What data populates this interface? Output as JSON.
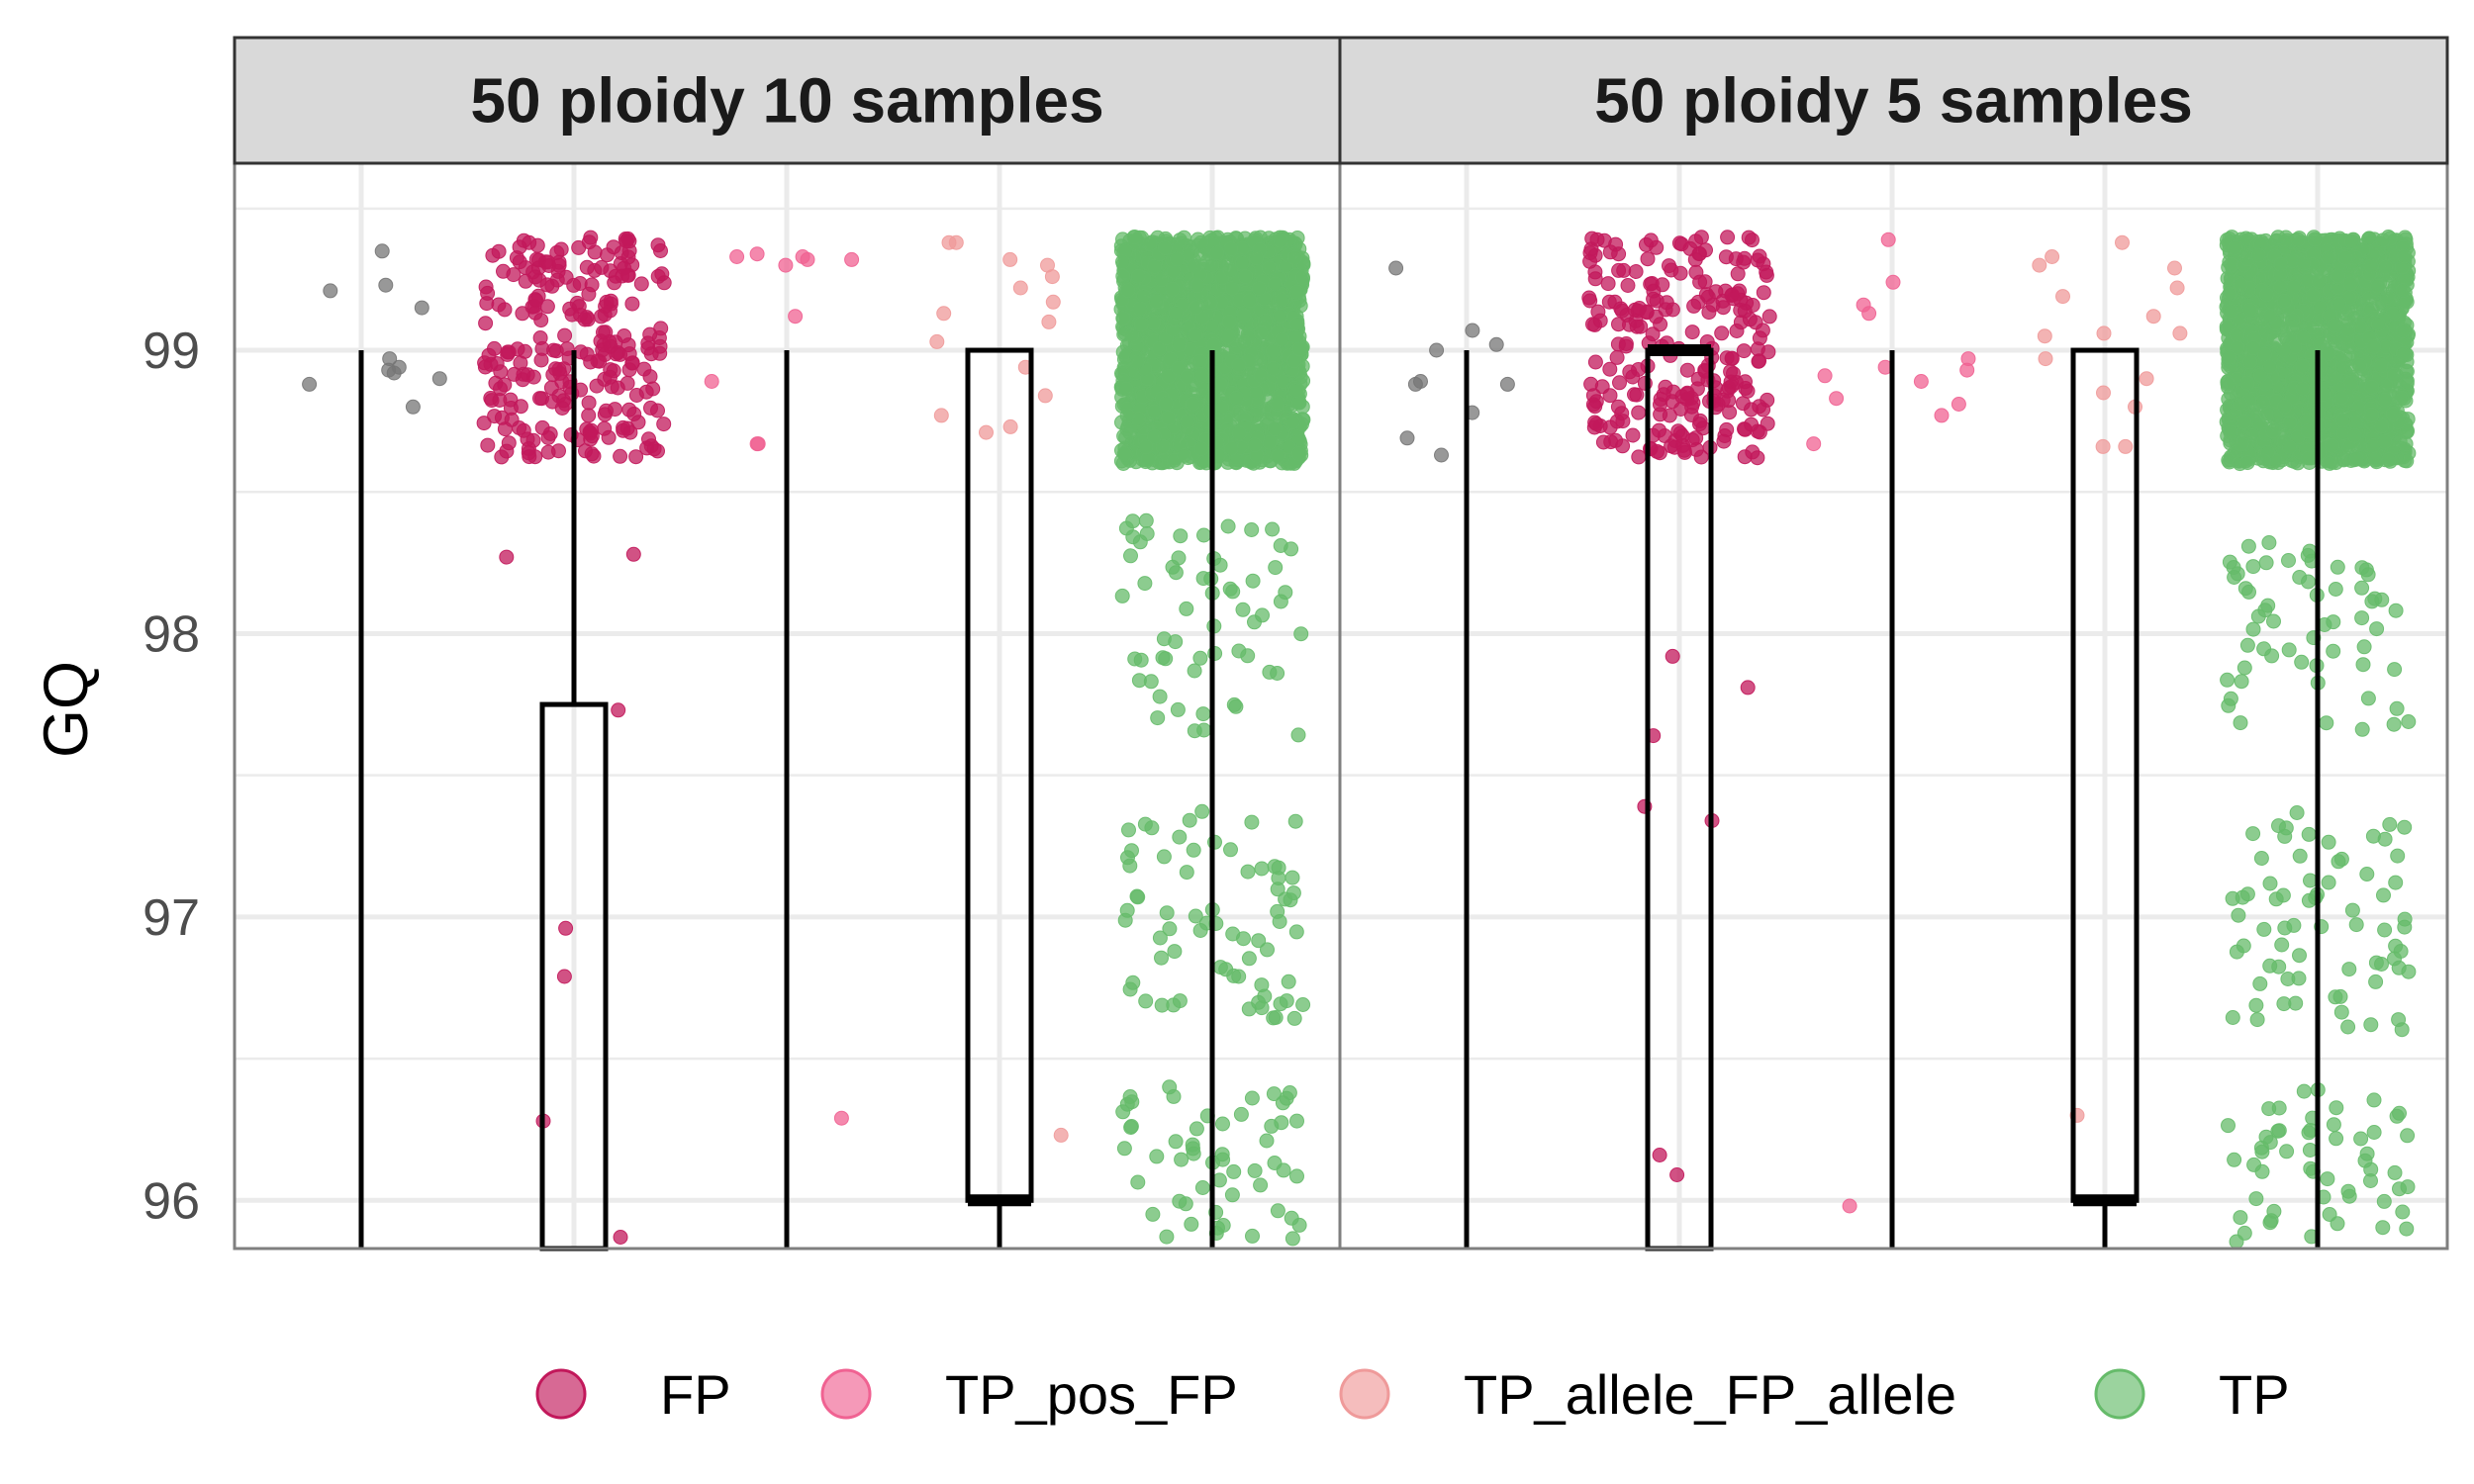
{
  "chart_data": {
    "type": "jitter-box",
    "ylabel": "GQ",
    "ylim": [
      95.83,
      99.66
    ],
    "y_ticks": [
      96,
      97,
      98,
      99
    ],
    "y_minor_ticks": [
      96.5,
      97.5,
      98.5,
      99.5
    ],
    "categories": [
      "FP",
      "TP_pos_FP",
      "TP_allele_FP_allele",
      "TP"
    ],
    "grid": true,
    "legend_position": "bottom",
    "legend": [
      {
        "label": "FP",
        "color": "#C2185B"
      },
      {
        "label": "TP_pos_FP",
        "color": "#F06292"
      },
      {
        "label": "TP_allele_FP_allele",
        "color": "#EF9A9A"
      },
      {
        "label": "TP",
        "color": "#66BB6A"
      }
    ],
    "unlegended_color": "#757575",
    "panels": [
      {
        "title": "50 ploidy 10 samples",
        "boxes": [
          {
            "group": 1,
            "low": 95.83,
            "q1": 95.83,
            "median": 95.83,
            "q3": 95.83,
            "high": 99.0
          },
          {
            "group": 2,
            "low": 95.83,
            "q1": 95.83,
            "median": 95.83,
            "q3": 97.75,
            "high": 99.0
          },
          {
            "group": 3,
            "low": 95.83,
            "q1": 95.83,
            "median": 95.83,
            "q3": 95.83,
            "high": 99.0
          },
          {
            "group": 4,
            "low": 95.83,
            "q1": 96.0,
            "median": 96.0,
            "q3": 99.0,
            "high": 99.0
          },
          {
            "group": 5,
            "low": 95.83,
            "q1": 99.0,
            "median": 99.0,
            "q3": 99.0,
            "high": 99.0
          }
        ],
        "points": [
          {
            "group": 1,
            "class": "none",
            "y": [
              99.23,
              99.21,
              99.35,
              98.9,
              98.97,
              98.93,
              98.88,
              99.15,
              98.92,
              98.8,
              98.94
            ]
          },
          {
            "group": 2,
            "class": "FP",
            "dense": {
              "n": 250,
              "ymin": 98.62,
              "ymax": 99.4
            },
            "y": [
              98.28,
              98.27,
              97.73,
              96.96,
              96.79,
              96.28,
              95.87
            ]
          },
          {
            "group": 3,
            "class": "TP_pos_FP",
            "y": [
              99.32,
              99.34,
              99.33,
              99.33,
              99.32,
              99.3,
              99.12,
              98.89,
              98.67,
              98.67,
              96.29
            ]
          },
          {
            "group": 4,
            "class": "TP_allele_FP_allele",
            "y": [
              99.38,
              99.38,
              99.32,
              99.3,
              99.26,
              99.22,
              99.17,
              99.13,
              99.1,
              99.03,
              98.94,
              98.84,
              98.77,
              98.73,
              98.71,
              96.23
            ]
          },
          {
            "group": 5,
            "class": "TP",
            "dense": {
              "n": 2000,
              "ymin": 98.6,
              "ymax": 99.4
            },
            "bands": [
              {
                "n": 70,
                "ymin": 96.64,
                "ymax": 97.38
              },
              {
                "n": 60,
                "ymin": 97.64,
                "ymax": 98.4
              },
              {
                "n": 55,
                "ymin": 95.85,
                "ymax": 96.4
              }
            ]
          }
        ]
      },
      {
        "title": "50 ploidy 5 samples",
        "boxes": [
          {
            "group": 1,
            "low": 95.83,
            "q1": 95.83,
            "median": 95.83,
            "q3": 95.83,
            "high": 99.0
          },
          {
            "group": 2,
            "low": 95.83,
            "q1": 95.83,
            "median": 99.0,
            "q3": 99.0,
            "high": 99.0
          },
          {
            "group": 3,
            "low": 95.83,
            "q1": 95.83,
            "median": 95.83,
            "q3": 95.83,
            "high": 99.0
          },
          {
            "group": 4,
            "low": 95.83,
            "q1": 96.0,
            "median": 96.0,
            "q3": 99.0,
            "high": 99.0
          },
          {
            "group": 5,
            "low": 95.83,
            "q1": 99.0,
            "median": 99.0,
            "q3": 99.0,
            "high": 99.0
          }
        ],
        "points": [
          {
            "group": 1,
            "class": "none",
            "y": [
              99.29,
              99.07,
              99.02,
              99.0,
              98.88,
              98.88,
              98.89,
              98.78,
              98.69,
              98.63
            ]
          },
          {
            "group": 2,
            "class": "FP",
            "dense": {
              "n": 250,
              "ymin": 98.62,
              "ymax": 99.4
            },
            "y": [
              97.92,
              97.81,
              97.64,
              97.39,
              97.34,
              96.16,
              96.09
            ]
          },
          {
            "group": 3,
            "class": "TP_pos_FP",
            "y": [
              99.39,
              99.24,
              99.16,
              99.13,
              98.97,
              98.94,
              98.93,
              98.91,
              98.89,
              98.83,
              98.81,
              98.77,
              98.67,
              95.98
            ]
          },
          {
            "group": 4,
            "class": "TP_allele_FP_allele",
            "y": [
              99.38,
              99.33,
              99.3,
              99.29,
              99.22,
              99.19,
              99.12,
              99.06,
              99.06,
              99.05,
              98.97,
              98.9,
              98.85,
              98.8,
              98.66,
              98.66,
              96.3
            ]
          },
          {
            "group": 5,
            "class": "TP",
            "dense": {
              "n": 2000,
              "ymin": 98.6,
              "ymax": 99.4
            },
            "bands": [
              {
                "n": 70,
                "ymin": 96.6,
                "ymax": 97.4
              },
              {
                "n": 60,
                "ymin": 97.6,
                "ymax": 98.36
              },
              {
                "n": 55,
                "ymin": 95.83,
                "ymax": 96.4
              }
            ]
          }
        ]
      }
    ]
  }
}
